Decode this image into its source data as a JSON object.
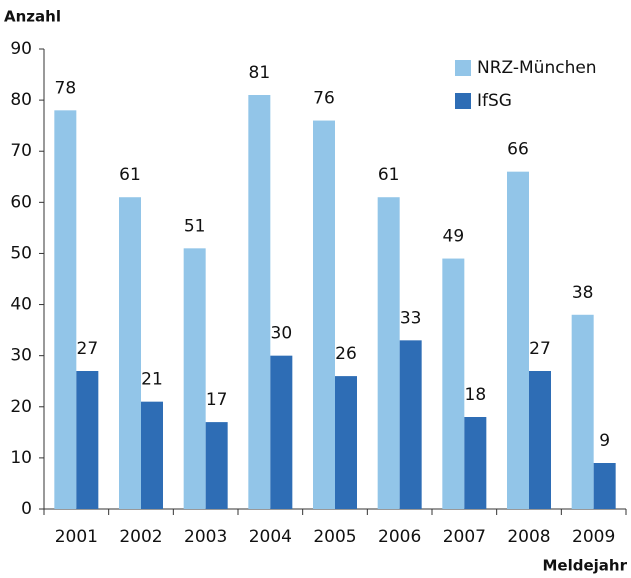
{
  "chart_data": {
    "type": "bar",
    "y_axis_label": "Anzahl",
    "x_axis_label": "Meldejahr",
    "categories": [
      "2001",
      "2002",
      "2003",
      "2004",
      "2005",
      "2006",
      "2007",
      "2008",
      "2009"
    ],
    "series": [
      {
        "name": "NRZ-München",
        "color": "#92c5e8",
        "values": [
          78,
          61,
          51,
          81,
          76,
          61,
          49,
          66,
          38
        ]
      },
      {
        "name": "IfSG",
        "color": "#2e6db5",
        "values": [
          27,
          21,
          17,
          30,
          26,
          33,
          18,
          27,
          9
        ]
      }
    ],
    "ylim": [
      0,
      90
    ],
    "yticks": [
      0,
      10,
      20,
      30,
      40,
      50,
      60,
      70,
      80,
      90
    ],
    "grid": false,
    "legend": "top-right"
  }
}
